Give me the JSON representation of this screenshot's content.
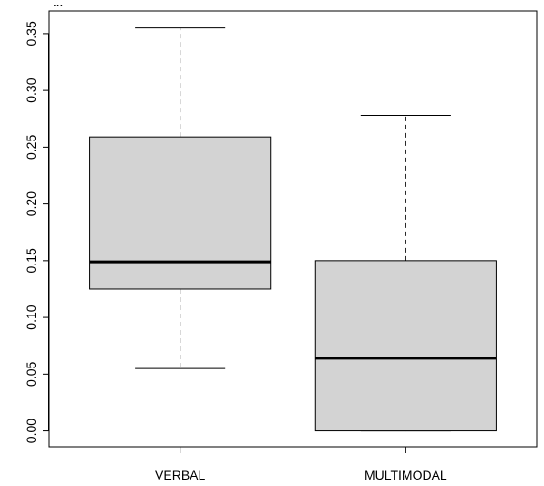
{
  "chart_data": {
    "type": "boxplot",
    "title": "",
    "xlabel": "",
    "ylabel": "",
    "ylim": [
      -0.014,
      0.37
    ],
    "yticks": [
      0.0,
      0.05,
      0.1,
      0.15,
      0.2,
      0.25,
      0.3,
      0.35
    ],
    "ytick_labels": [
      "0.00",
      "0.05",
      "0.10",
      "0.15",
      "0.20",
      "0.25",
      "0.30",
      "0.35"
    ],
    "categories": [
      "VERBAL",
      "MULTIMODAL"
    ],
    "boxes": [
      {
        "category": "VERBAL",
        "whisker_low": 0.055,
        "q1": 0.125,
        "median": 0.149,
        "q3": 0.259,
        "whisker_high": 0.355
      },
      {
        "category": "MULTIMODAL",
        "whisker_low": 0.0,
        "q1": 0.0,
        "median": 0.064,
        "q3": 0.15,
        "whisker_high": 0.278
      }
    ],
    "box_fill": "#d3d3d3",
    "grid": false
  },
  "clipped_top_text": "..."
}
